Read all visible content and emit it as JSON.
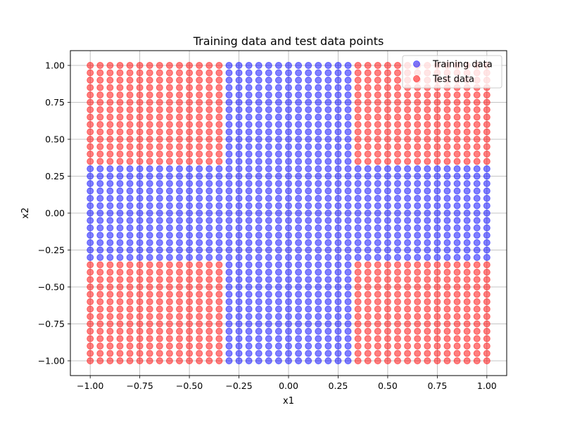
{
  "chart_data": {
    "type": "scatter",
    "title": "Training data and test data points",
    "xlabel": "x1",
    "ylabel": "x2",
    "xlim": [
      -1.1,
      1.1
    ],
    "ylim": [
      -1.1,
      1.1
    ],
    "grid": true,
    "legend_position": "top-right",
    "x_ticks": [
      -1.0,
      -0.75,
      -0.5,
      -0.25,
      0.0,
      0.25,
      0.5,
      0.75,
      1.0
    ],
    "x_tick_labels": [
      "−1.00",
      "−0.75",
      "−0.50",
      "−0.25",
      "0.00",
      "0.25",
      "0.50",
      "0.75",
      "1.00"
    ],
    "y_ticks": [
      -1.0,
      -0.75,
      -0.5,
      -0.25,
      0.0,
      0.25,
      0.5,
      0.75,
      1.0
    ],
    "y_tick_labels": [
      "−1.00",
      "−0.75",
      "−0.50",
      "−0.25",
      "0.00",
      "0.25",
      "0.50",
      "0.75",
      "1.00"
    ],
    "grid_values": [
      -1.0,
      -0.95,
      -0.9,
      -0.85,
      -0.8,
      -0.75,
      -0.7,
      -0.65,
      -0.6,
      -0.55,
      -0.5,
      -0.45,
      -0.4,
      -0.35,
      -0.3,
      -0.25,
      -0.2,
      -0.15,
      -0.1,
      -0.05,
      0.0,
      0.05,
      0.1,
      0.15,
      0.2,
      0.25,
      0.3,
      0.35,
      0.4,
      0.45,
      0.5,
      0.55,
      0.6,
      0.65,
      0.7,
      0.75,
      0.8,
      0.85,
      0.9,
      0.95,
      1.0
    ],
    "training_region": {
      "abs_x_max": 0.3,
      "abs_y_max": 0.3
    },
    "series": [
      {
        "name": "Training data",
        "color": "#0000ff",
        "alpha": 0.5,
        "rule": "abs(x) <= 0.3 or abs(y) <= 0.3"
      },
      {
        "name": "Test data",
        "color": "#ff0000",
        "alpha": 0.5,
        "rule": "abs(x) > 0.3 and abs(y) > 0.3"
      }
    ]
  }
}
